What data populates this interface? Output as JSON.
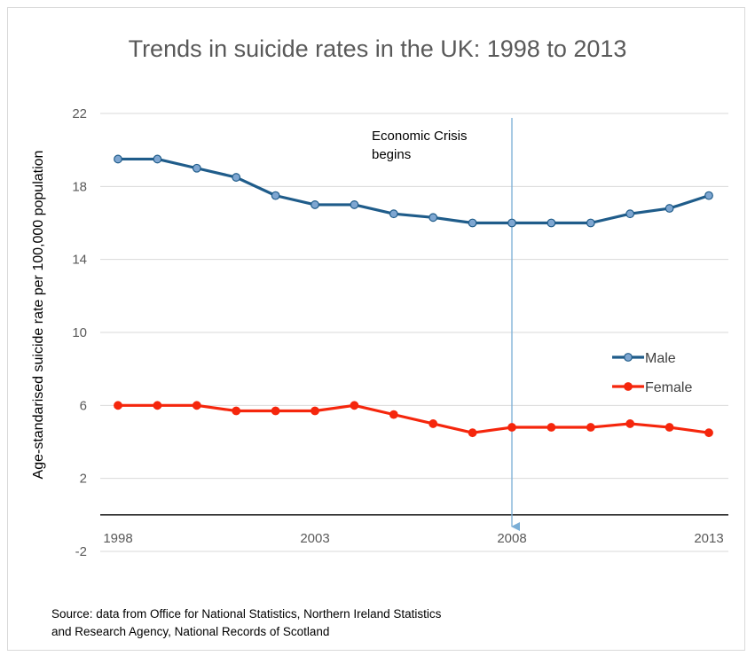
{
  "chart_data": {
    "type": "line",
    "title": "Trends in suicide rates in the UK: 1998 to 2013",
    "ylabel": "Age-standarised suicide rate per 100,000 population",
    "xlabel": "",
    "x": [
      1998,
      1999,
      2000,
      2001,
      2002,
      2003,
      2004,
      2005,
      2006,
      2007,
      2008,
      2009,
      2010,
      2011,
      2012,
      2013
    ],
    "xticks": [
      1998,
      2003,
      2008,
      2013
    ],
    "yticks": [
      -2,
      2,
      6,
      10,
      14,
      18,
      22
    ],
    "ylim": [
      -2,
      22
    ],
    "grid": true,
    "legend_position": "right",
    "series": [
      {
        "name": "Male",
        "color": "#1f5c8a",
        "marker_color": "#7ea6d1",
        "values": [
          19.5,
          19.5,
          19.0,
          18.5,
          17.5,
          17.0,
          17.0,
          16.5,
          16.3,
          16.0,
          16.0,
          16.0,
          16.0,
          16.5,
          16.8,
          17.5
        ]
      },
      {
        "name": "Female",
        "color": "#f5260c",
        "marker_color": "#f5260c",
        "values": [
          6.0,
          6.0,
          6.0,
          5.7,
          5.7,
          5.7,
          6.0,
          5.5,
          5.0,
          4.5,
          4.8,
          4.8,
          4.8,
          5.0,
          4.8,
          4.5
        ]
      }
    ],
    "annotations": [
      {
        "text_line1": "Economic Crisis",
        "text_line2": "begins",
        "x": 2008,
        "arrow_color": "#7aaed6"
      }
    ]
  },
  "source": {
    "line1": "Source: data from Office for National Statistics, Northern Ireland Statistics",
    "line2": "and Research Agency, National Records of Scotland"
  }
}
